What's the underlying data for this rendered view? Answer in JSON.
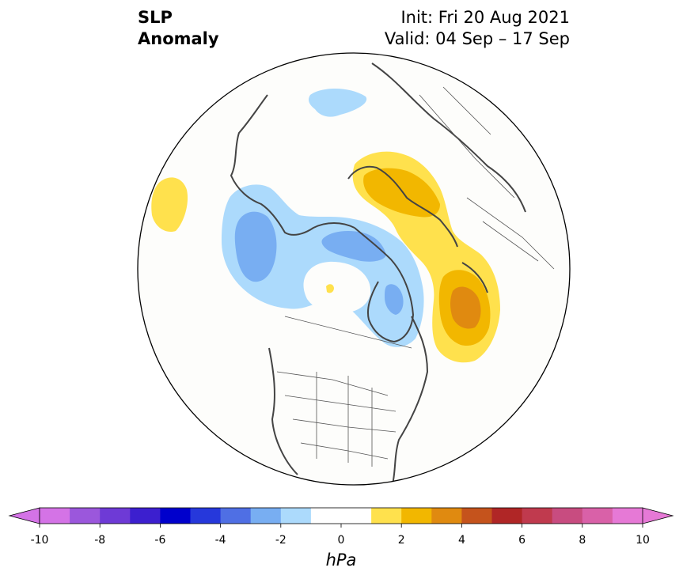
{
  "title": {
    "variable_line1": "SLP",
    "variable_line2": "Anomaly",
    "init": "Init: Fri 20 Aug 2021",
    "valid": "Valid: 04 Sep – 17 Sep"
  },
  "colorbar": {
    "unit": "hPa",
    "ticks": [
      "-10",
      "-8",
      "-6",
      "-4",
      "-2",
      "0",
      "2",
      "4",
      "6",
      "8",
      "10"
    ],
    "colors": [
      "#d473e6",
      "#9b57dc",
      "#6e3ad6",
      "#3c1fcf",
      "#0000cc",
      "#2638db",
      "#4f6fe4",
      "#78aef2",
      "#acdafc",
      "#ffffff",
      "#ffffff",
      "#ffe14d",
      "#f2b700",
      "#e08a10",
      "#c5531c",
      "#b02626",
      "#c03a4e",
      "#c84c80",
      "#d961a8",
      "#e679d6"
    ],
    "extend_min_color": "#d473e6",
    "extend_max_color": "#e679d6"
  },
  "map": {
    "projection": "North Polar Stereographic",
    "anomalies": [
      {
        "region": "North Pacific / Bering",
        "sign": "positive",
        "max_hPa": 2
      },
      {
        "region": "Alaska / Beaufort Sea",
        "sign": "negative",
        "max_hPa": -3
      },
      {
        "region": "Arctic Ocean / Canadian Archipelago",
        "sign": "negative",
        "max_hPa": -3
      },
      {
        "region": "Greenland",
        "sign": "negative",
        "max_hPa": -3
      },
      {
        "region": "Scandinavia / Barents Sea",
        "sign": "positive",
        "max_hPa": 3
      },
      {
        "region": "North Atlantic / British Isles",
        "sign": "positive",
        "max_hPa": 4
      },
      {
        "region": "Central Siberia",
        "sign": "negative",
        "max_hPa": -2
      }
    ]
  }
}
